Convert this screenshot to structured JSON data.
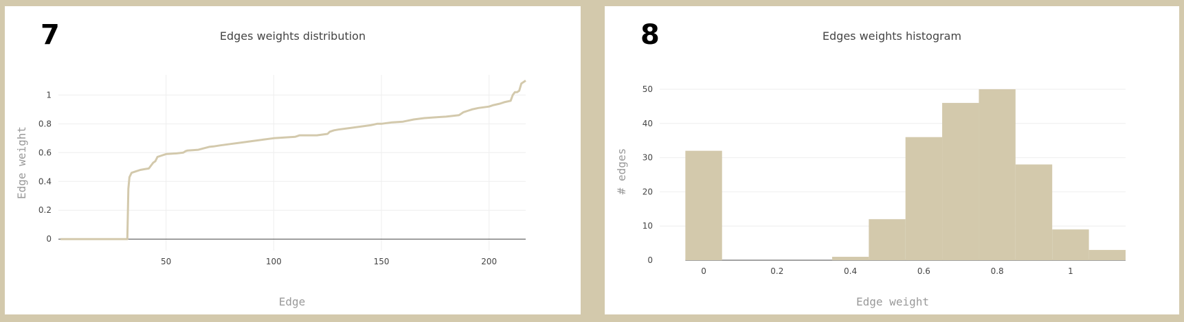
{
  "panels": [
    {
      "number": "7",
      "title": "Edges weights distribution"
    },
    {
      "number": "8",
      "title": "Edges weights histogram"
    }
  ],
  "colors": {
    "background": "#d3c9ac",
    "series": "#d3c9ac",
    "grid": "#eeeeee",
    "zeroline": "#444444"
  },
  "chart_data": [
    {
      "type": "line",
      "title": "Edges weights distribution",
      "xlabel": "Edge",
      "ylabel": "Edge weight",
      "xlim": [
        0,
        217
      ],
      "ylim": [
        -0.08,
        1.14
      ],
      "x_ticks": [
        50,
        100,
        150,
        200
      ],
      "y_ticks": [
        0,
        0.2,
        0.4,
        0.6,
        0.8,
        1
      ],
      "grid": true,
      "series": [
        {
          "x": [
            1,
            32,
            32.5,
            33,
            34,
            36,
            38,
            40,
            42,
            44,
            45,
            46,
            48,
            50,
            55,
            58,
            59,
            60,
            65,
            70,
            72,
            75,
            80,
            85,
            90,
            95,
            100,
            105,
            110,
            111,
            112,
            115,
            120,
            125,
            126,
            127,
            128,
            130,
            135,
            140,
            145,
            148,
            150,
            155,
            160,
            165,
            170,
            175,
            180,
            186,
            187,
            188,
            190,
            192,
            195,
            200,
            202,
            205,
            207,
            210,
            211,
            212,
            213,
            214,
            215,
            216,
            217
          ],
          "y": [
            0,
            0,
            0.35,
            0.43,
            0.46,
            0.47,
            0.48,
            0.485,
            0.49,
            0.53,
            0.54,
            0.57,
            0.58,
            0.59,
            0.595,
            0.6,
            0.61,
            0.615,
            0.62,
            0.64,
            0.643,
            0.65,
            0.66,
            0.67,
            0.68,
            0.69,
            0.7,
            0.705,
            0.71,
            0.715,
            0.72,
            0.72,
            0.72,
            0.73,
            0.745,
            0.75,
            0.755,
            0.76,
            0.77,
            0.78,
            0.79,
            0.8,
            0.8,
            0.81,
            0.815,
            0.83,
            0.84,
            0.845,
            0.85,
            0.86,
            0.87,
            0.88,
            0.89,
            0.9,
            0.91,
            0.92,
            0.93,
            0.94,
            0.95,
            0.96,
            1.0,
            1.02,
            1.02,
            1.03,
            1.08,
            1.09,
            1.1
          ]
        }
      ]
    },
    {
      "type": "bar",
      "title": "Edges weights histogram",
      "xlabel": "Edge weight",
      "ylabel": "# edges",
      "xlim": [
        -0.12,
        1.15
      ],
      "ylim": [
        0,
        52
      ],
      "x_ticks": [
        0,
        0.2,
        0.4,
        0.6,
        0.8,
        1
      ],
      "y_ticks": [
        0,
        10,
        20,
        30,
        40,
        50
      ],
      "grid": true,
      "bin_width": 0.1,
      "bins": [
        {
          "start": -0.05,
          "count": 32
        },
        {
          "start": 0.05,
          "count": 0
        },
        {
          "start": 0.15,
          "count": 0
        },
        {
          "start": 0.25,
          "count": 0
        },
        {
          "start": 0.35,
          "count": 1
        },
        {
          "start": 0.45,
          "count": 12
        },
        {
          "start": 0.55,
          "count": 36
        },
        {
          "start": 0.65,
          "count": 46
        },
        {
          "start": 0.75,
          "count": 50
        },
        {
          "start": 0.85,
          "count": 28
        },
        {
          "start": 0.95,
          "count": 9
        },
        {
          "start": 1.05,
          "count": 3
        }
      ]
    }
  ]
}
